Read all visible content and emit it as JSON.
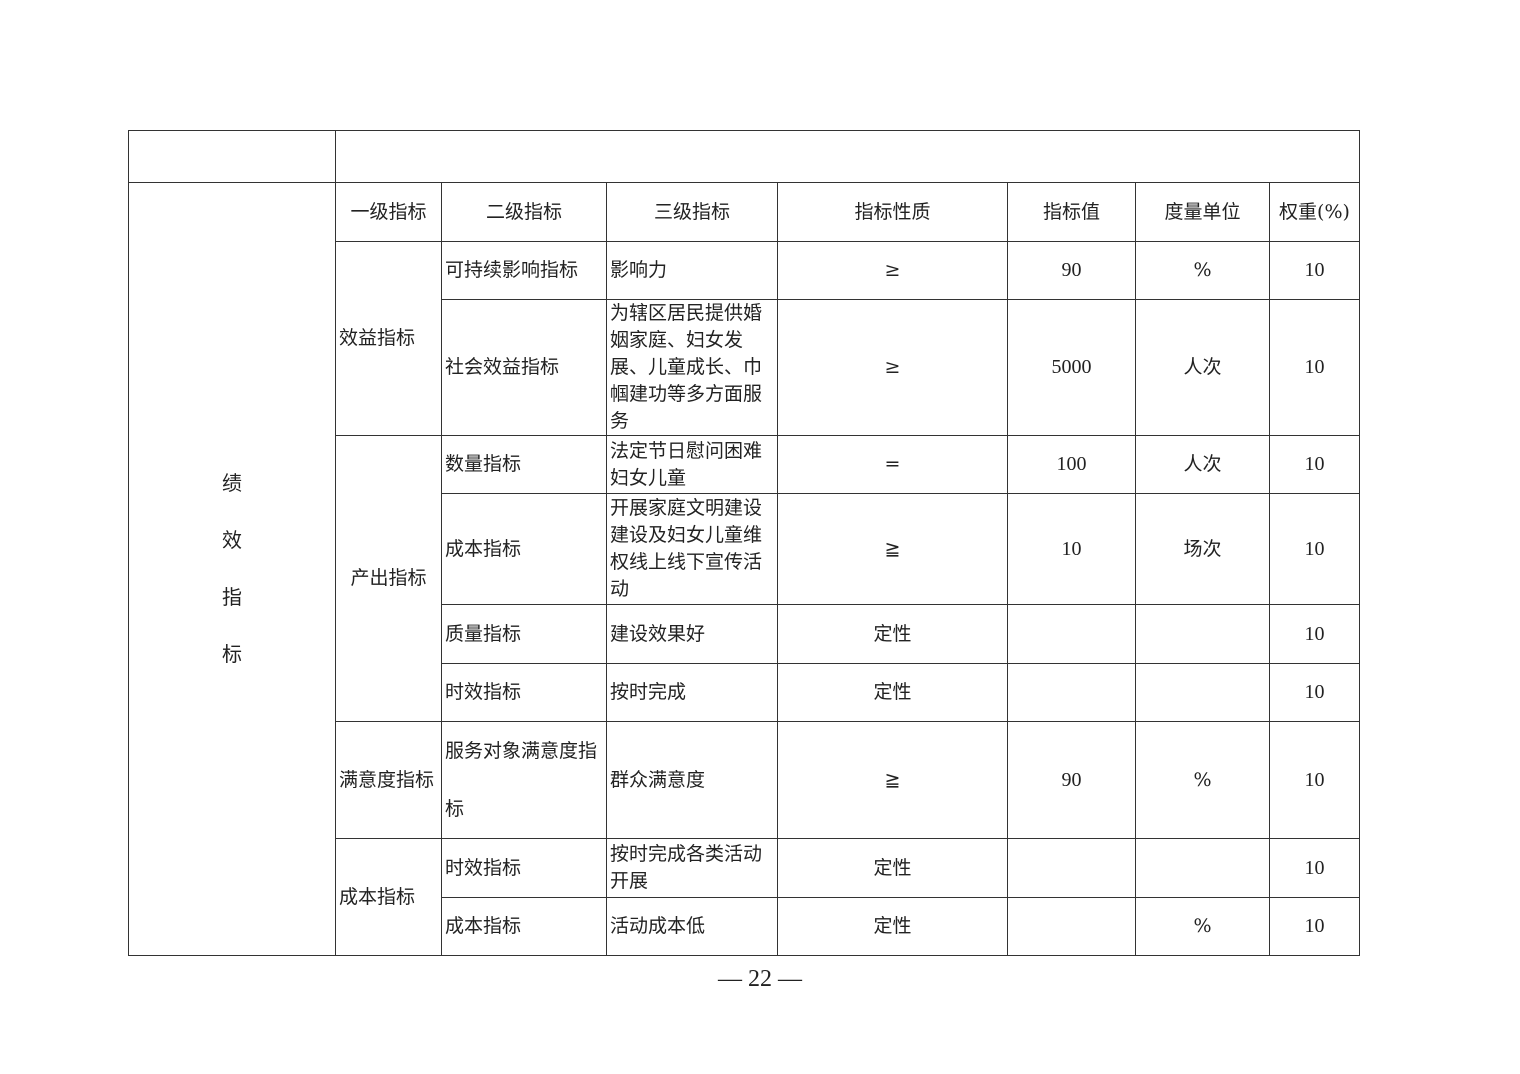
{
  "side_label": [
    "绩",
    "效",
    "指",
    "标"
  ],
  "headers": [
    "一级指标",
    "二级指标",
    "三级指标",
    "指标性质",
    "指标值",
    "度量单位",
    "权重(%)"
  ],
  "groups": [
    {
      "level1": "效益指标",
      "rows": [
        {
          "level2": "可持续影响指标",
          "level3": "影响力",
          "nature": "≥",
          "value": "90",
          "unit": "%",
          "weight": "10"
        },
        {
          "level2": "社会效益指标",
          "level3": "为辖区居民提供婚姻家庭、妇女发展、儿童成长、巾帼建功等多方面服务",
          "nature": "≥",
          "value": "5000",
          "unit": "人次",
          "weight": "10"
        }
      ]
    },
    {
      "level1": "产出指标",
      "rows": [
        {
          "level2": "数量指标",
          "level3": "法定节日慰问困难妇女儿童",
          "nature": "=",
          "value": "100",
          "unit": "人次",
          "weight": "10"
        },
        {
          "level2": "成本指标",
          "level3": "开展家庭文明建设建设及妇女儿童维权线上线下宣传活动",
          "nature": "≧",
          "value": "10",
          "unit": "场次",
          "weight": "10"
        },
        {
          "level2": "质量指标",
          "level3": "建设效果好",
          "nature": "定性",
          "value": "",
          "unit": "",
          "weight": "10"
        },
        {
          "level2": "时效指标",
          "level3": "按时完成",
          "nature": "定性",
          "value": "",
          "unit": "",
          "weight": "10"
        }
      ]
    },
    {
      "level1": "满意度指标",
      "rows": [
        {
          "level2": "服务对象满意度指标",
          "level3": "群众满意度",
          "nature": "≧",
          "value": "90",
          "unit": "%",
          "weight": "10"
        }
      ]
    },
    {
      "level1": "成本指标",
      "rows": [
        {
          "level2": "时效指标",
          "level3": "按时完成各类活动开展",
          "nature": "定性",
          "value": "",
          "unit": "",
          "weight": "10"
        },
        {
          "level2": "成本指标",
          "level3": "活动成本低",
          "nature": "定性",
          "value": "",
          "unit": "%",
          "weight": "10"
        }
      ]
    }
  ],
  "page_number": "— 22 —"
}
